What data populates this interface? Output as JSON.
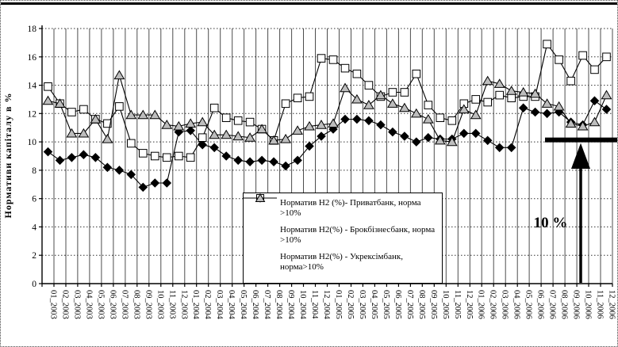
{
  "chart_data": {
    "type": "line",
    "title": "",
    "ylabel": "Нормативи капіталу в %",
    "ylim": [
      0,
      18
    ],
    "ytick_step": 2,
    "grid": "both",
    "legend_position": "inside-bottom-center",
    "categories": [
      "01_2003",
      "02_2003",
      "03_2003",
      "04_2003",
      "05_2003",
      "06_2003",
      "07_2003",
      "08_2003",
      "09_2003",
      "10_2003",
      "11_2003",
      "12_2003",
      "01_2004",
      "02_2004",
      "03_2004",
      "04_2004",
      "05_2004",
      "06_2004",
      "07_2004",
      "08_2004",
      "09_2004",
      "10_2004",
      "11_2004",
      "12_2004",
      "01_2005",
      "02_2005",
      "03_2005",
      "04_2005",
      "05_2005",
      "06_2005",
      "07_2005",
      "08_2005",
      "09_2005",
      "10_2005",
      "11_2005",
      "12_2005",
      "01_2006",
      "02_2006",
      "03_2006",
      "04_2006",
      "05_2006",
      "06_2006",
      "07_2006",
      "08_2006",
      "09_2006",
      "10_2006",
      "11_2006",
      "12_2006"
    ],
    "series": [
      {
        "key": "privatbank",
        "name": "Норматив Н2 (%)- Приватбанк, норма >10%",
        "marker": "diamond",
        "marker_fill": "#000000",
        "line_color": "#000000",
        "values": [
          9.3,
          8.7,
          8.9,
          9.1,
          8.9,
          8.2,
          8.0,
          7.7,
          6.8,
          7.1,
          7.1,
          10.7,
          10.8,
          9.8,
          9.6,
          9.0,
          8.7,
          8.6,
          8.7,
          8.6,
          8.3,
          8.7,
          9.7,
          10.4,
          10.9,
          11.6,
          11.6,
          11.5,
          11.2,
          10.7,
          10.4,
          10.0,
          10.3,
          10.2,
          10.2,
          10.6,
          10.6,
          10.1,
          9.6,
          9.6,
          12.4,
          12.1,
          12.0,
          12.1,
          11.4,
          11.2,
          12.9,
          12.3
        ]
      },
      {
        "key": "brokbiznesbank",
        "name": "Норматив Н2(%) - Брокбізнесбанк, норма >10%",
        "marker": "square",
        "marker_fill": "#ffffff",
        "line_color": "#000000",
        "values": [
          13.9,
          12.7,
          12.1,
          12.3,
          11.6,
          11.3,
          12.5,
          9.9,
          9.2,
          9.0,
          8.9,
          9.0,
          8.9,
          10.3,
          12.4,
          11.7,
          11.5,
          11.4,
          10.9,
          10.1,
          12.7,
          13.1,
          13.2,
          15.9,
          15.8,
          15.2,
          14.8,
          14.0,
          13.2,
          13.5,
          13.5,
          14.8,
          12.6,
          11.7,
          11.5,
          12.7,
          13.0,
          12.8,
          13.3,
          13.1,
          13.2,
          13.2,
          16.9,
          15.8,
          14.3,
          16.1,
          15.1,
          16.0
        ]
      },
      {
        "key": "ukreximbank",
        "name": "Норматив Н2(%) - Укрексімбанк, норма>10%",
        "marker": "triangle",
        "marker_fill": "#bdbdbd",
        "line_color": "#000000",
        "values": [
          12.9,
          12.7,
          10.6,
          10.6,
          11.6,
          10.2,
          14.7,
          11.9,
          11.9,
          11.9,
          11.2,
          11.1,
          11.3,
          11.4,
          10.5,
          10.5,
          10.4,
          10.3,
          10.9,
          10.1,
          10.2,
          10.8,
          11.1,
          11.2,
          11.3,
          13.8,
          13.0,
          12.6,
          13.3,
          12.7,
          12.4,
          12.0,
          11.6,
          10.1,
          10.0,
          12.3,
          11.9,
          14.3,
          14.1,
          13.6,
          13.5,
          13.4,
          12.7,
          12.5,
          11.3,
          11.1,
          11.4,
          13.3
        ]
      }
    ],
    "annotation": {
      "label": "10 %",
      "threshold_value": 10
    }
  }
}
